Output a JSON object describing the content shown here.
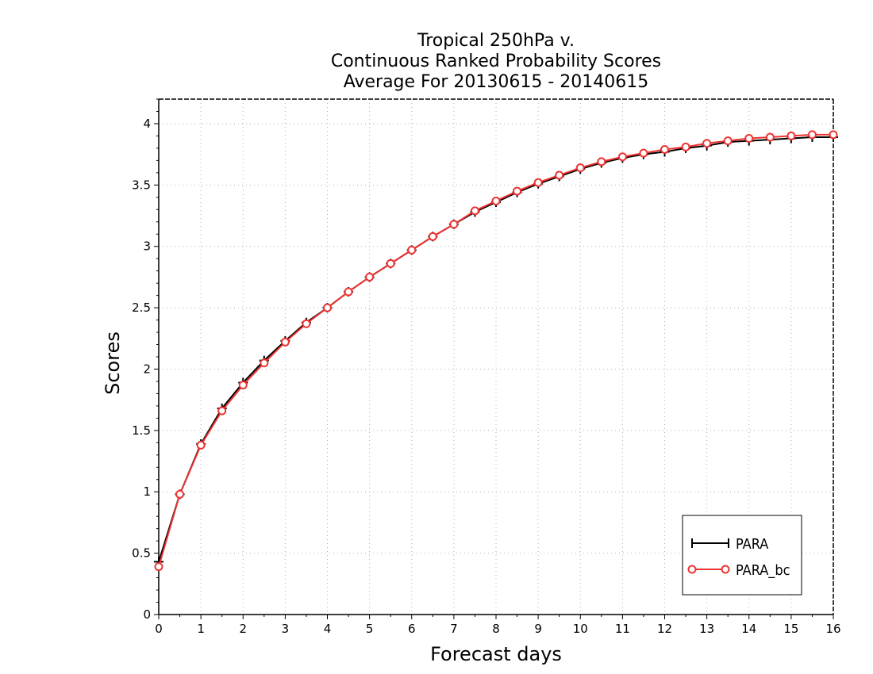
{
  "chart_data": {
    "type": "line",
    "title": [
      "Tropical 250hPa v.",
      "Continuous Ranked Probability Scores",
      "Average For 20130615 - 20140615"
    ],
    "xlabel": "Forecast days",
    "ylabel": "Scores",
    "xlim": [
      0,
      16
    ],
    "ylim": [
      0,
      4.2
    ],
    "xticks": [
      "0",
      "1",
      "2",
      "3",
      "4",
      "5",
      "6",
      "7",
      "8",
      "9",
      "10",
      "11",
      "12",
      "13",
      "14",
      "15",
      "16"
    ],
    "yticks": [
      "0",
      "0.5",
      "1",
      "1.5",
      "2",
      "2.5",
      "3",
      "3.5",
      "4"
    ],
    "grid": true,
    "legend_position": "bottom-right",
    "x": [
      0,
      0.5,
      1,
      1.5,
      2,
      2.5,
      3,
      3.5,
      4,
      4.5,
      5,
      5.5,
      6,
      6.5,
      7,
      7.5,
      8,
      8.5,
      9,
      9.5,
      10,
      10.5,
      11,
      11.5,
      12,
      12.5,
      13,
      13.5,
      14,
      14.5,
      15,
      15.5,
      16
    ],
    "series": [
      {
        "name": "PARA",
        "color": "#000000",
        "marker": "plus",
        "values": [
          0.43,
          0.98,
          1.39,
          1.68,
          1.89,
          2.07,
          2.23,
          2.38,
          2.5,
          2.63,
          2.75,
          2.86,
          2.97,
          3.08,
          3.18,
          3.28,
          3.36,
          3.44,
          3.51,
          3.57,
          3.63,
          3.68,
          3.72,
          3.75,
          3.77,
          3.8,
          3.82,
          3.85,
          3.86,
          3.87,
          3.88,
          3.89,
          3.89
        ]
      },
      {
        "name": "PARA_bc",
        "color": "#ee3333",
        "marker": "circle",
        "values": [
          0.39,
          0.98,
          1.38,
          1.66,
          1.87,
          2.05,
          2.22,
          2.37,
          2.5,
          2.63,
          2.75,
          2.86,
          2.97,
          3.08,
          3.18,
          3.29,
          3.37,
          3.45,
          3.52,
          3.58,
          3.64,
          3.69,
          3.73,
          3.76,
          3.79,
          3.81,
          3.84,
          3.86,
          3.88,
          3.89,
          3.9,
          3.91,
          3.91
        ]
      }
    ]
  }
}
